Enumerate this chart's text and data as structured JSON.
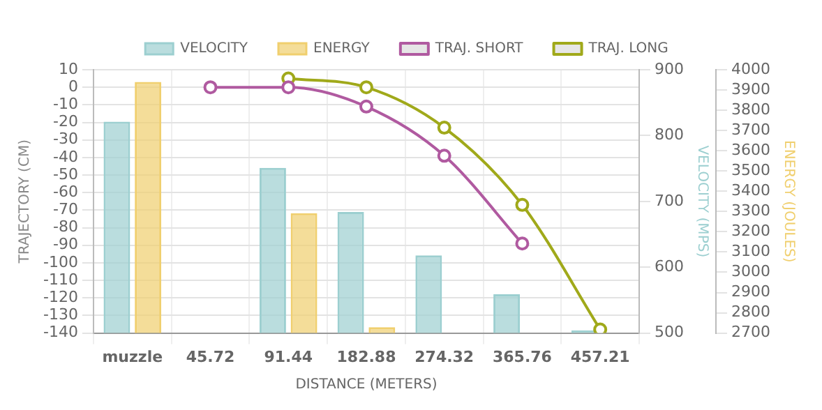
{
  "chart_data": {
    "type": "bar",
    "xlabel": "DISTANCE (METERS)",
    "ylabel": "TRAJECTORY (CM)",
    "y2label": "VELOCITY (MPS)",
    "y3label": "ENERGY (JOULES)",
    "categories": [
      "muzzle",
      "45.72",
      "91.44",
      "182.88",
      "274.32",
      "365.76",
      "457.21"
    ],
    "series": [
      {
        "name": "VELOCITY",
        "axis": "y2",
        "color": "#9ccfd0",
        "values": [
          821,
          null,
          751,
          684,
          618,
          559,
          504
        ]
      },
      {
        "name": "ENERGY",
        "axis": "y3",
        "color": "#f0cf6e",
        "values": [
          3940,
          null,
          3292,
          2729,
          null,
          null,
          null
        ]
      },
      {
        "name": "TRAJ. SHORT",
        "type": "line",
        "color": "#b05aa0",
        "values": [
          null,
          0,
          0,
          -11,
          -39,
          -89,
          null
        ]
      },
      {
        "name": "TRAJ. LONG",
        "type": "line",
        "color": "#a0a91a",
        "values": [
          null,
          null,
          5,
          0,
          -23,
          -67,
          -138
        ]
      }
    ],
    "ylim": [
      -140,
      10
    ],
    "yticks": [
      10,
      0,
      -10,
      -20,
      -30,
      -40,
      -50,
      -60,
      -70,
      -80,
      -90,
      -100,
      -110,
      -120,
      -130,
      -140
    ],
    "y2lim": [
      500,
      900
    ],
    "y2ticks": [
      500,
      600,
      700,
      800,
      900
    ],
    "y3lim": [
      2700,
      4000
    ],
    "y3ticks": [
      2700,
      2800,
      2900,
      3000,
      3100,
      3200,
      3300,
      3400,
      3500,
      3600,
      3700,
      3800,
      3900,
      4000
    ],
    "grid": true,
    "legend": "top",
    "marker": "circle"
  }
}
